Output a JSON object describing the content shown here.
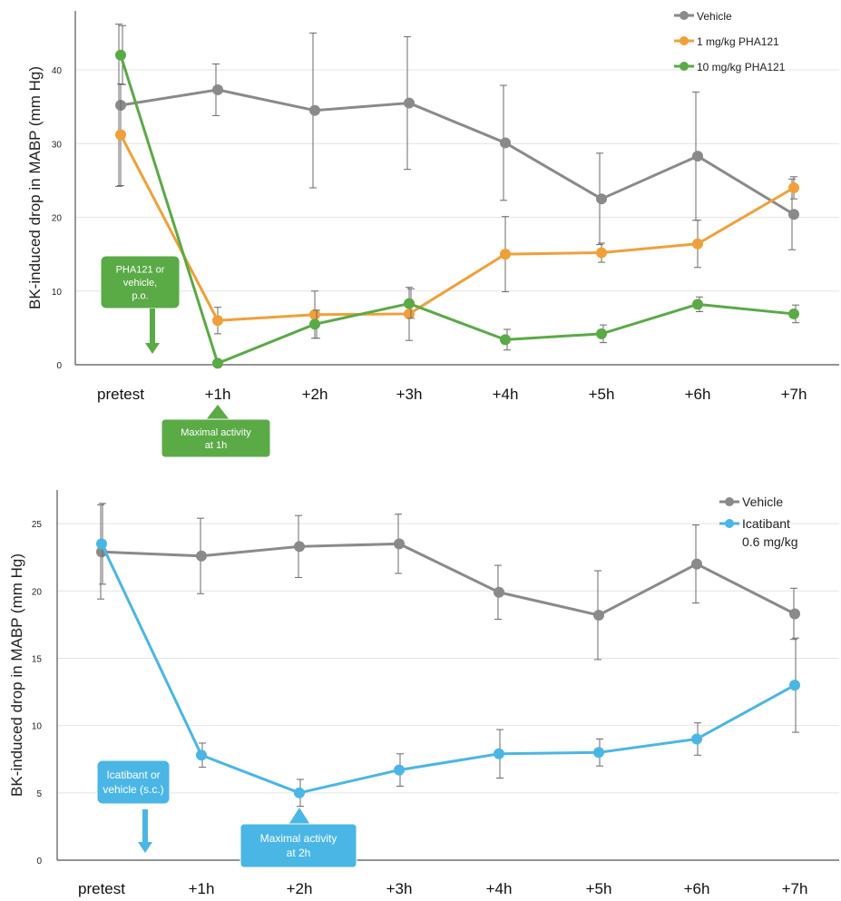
{
  "chart_data": [
    {
      "type": "line",
      "title": "",
      "ylabel": "BK-induced drop in MABP (mm Hg)",
      "xlabel": "",
      "categories": [
        "pretest",
        "+1h",
        "+2h",
        "+3h",
        "+4h",
        "+5h",
        "+6h",
        "+7h"
      ],
      "yticks": [
        "0",
        "10",
        "20",
        "30",
        "40"
      ],
      "ylim": [
        0,
        48
      ],
      "grid": true,
      "legend_position": "top-right",
      "series": [
        {
          "name": "Vehicle",
          "color": "#8a8a8a",
          "values": [
            35.2,
            37.3,
            34.5,
            35.5,
            30.1,
            22.5,
            28.3,
            20.4
          ],
          "errors": [
            11.0,
            3.5,
            10.5,
            9.0,
            7.8,
            6.2,
            8.7,
            4.8
          ]
        },
        {
          "name": "1 mg/kg PHA121",
          "color": "#f0a03a",
          "values": [
            31.2,
            6.0,
            6.8,
            6.9,
            15.0,
            15.2,
            16.4,
            24.0
          ],
          "errors": [
            6.9,
            1.8,
            3.2,
            3.6,
            5.1,
            1.3,
            3.2,
            1.5
          ]
        },
        {
          "name": "10 mg/kg PHA121",
          "color": "#5aaa46",
          "values": [
            42.0,
            0.2,
            5.5,
            8.3,
            3.4,
            4.2,
            8.2,
            6.9
          ],
          "errors": [
            4.0,
            0.3,
            1.9,
            2.0,
            1.4,
            1.2,
            1.0,
            1.2
          ]
        }
      ],
      "annotations": {
        "dose_box": [
          "PHA121 or",
          "vehicle,",
          "p.o."
        ],
        "max_box": [
          "Maximal activity",
          "at 1h"
        ],
        "color": "#5aaa46"
      }
    },
    {
      "type": "line",
      "title": "",
      "ylabel": "BK-induced drop in MABP (mm Hg)",
      "xlabel": "",
      "categories": [
        "pretest",
        "+1h",
        "+2h",
        "+3h",
        "+4h",
        "+5h",
        "+6h",
        "+7h"
      ],
      "yticks": [
        "0",
        "5",
        "10",
        "15",
        "20",
        "25"
      ],
      "ylim": [
        0,
        27.5
      ],
      "grid": true,
      "legend_position": "top-right",
      "series": [
        {
          "name": "Vehicle",
          "color": "#8a8a8a",
          "values": [
            22.9,
            22.6,
            23.3,
            23.5,
            19.9,
            18.2,
            22.0,
            18.3
          ],
          "errors": [
            3.5,
            2.8,
            2.3,
            2.2,
            2.0,
            3.3,
            2.9,
            1.9
          ]
        },
        {
          "name": "Icatibant 0.6 mg/kg",
          "label_lines": [
            "Icatibant",
            "0.6 mg/kg"
          ],
          "color": "#4ab6e6",
          "values": [
            23.5,
            7.8,
            5.0,
            6.7,
            7.9,
            8.0,
            9.0,
            13.0
          ],
          "errors": [
            3.0,
            0.9,
            1.0,
            1.2,
            1.8,
            1.0,
            1.2,
            3.5
          ]
        }
      ],
      "annotations": {
        "dose_box": [
          "Icatibant or",
          "vehicle (s.c.)"
        ],
        "max_box": [
          "Maximal activity",
          "at 2h"
        ],
        "color": "#4ab6e6"
      }
    }
  ]
}
